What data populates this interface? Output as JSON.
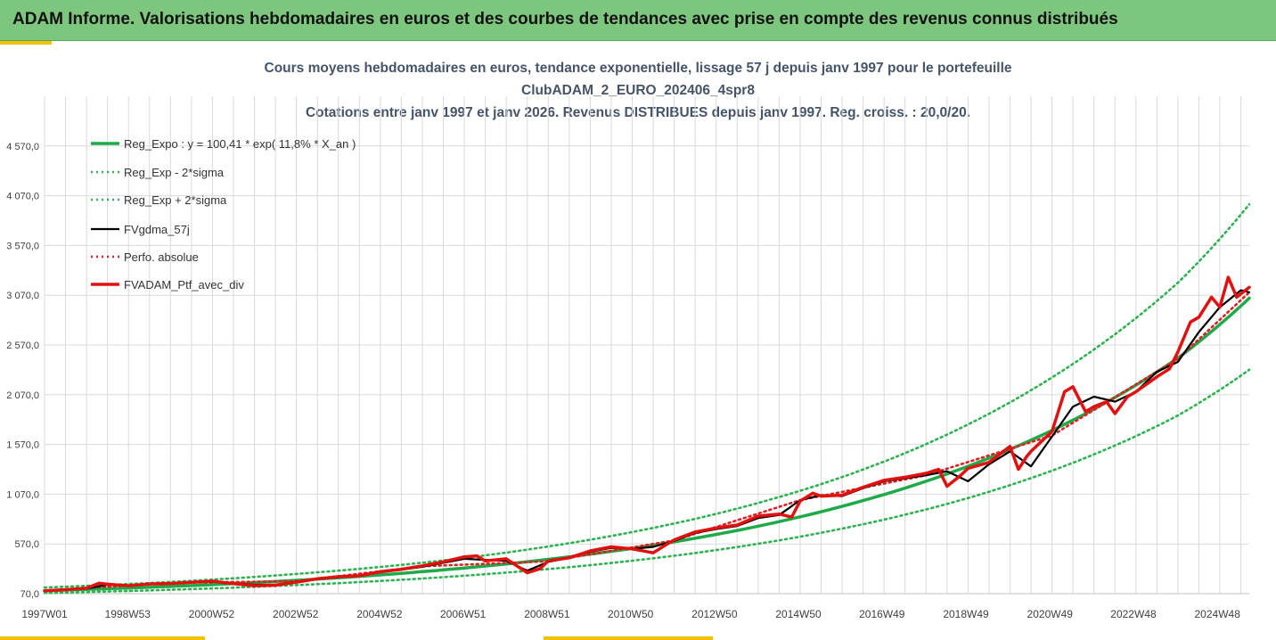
{
  "header": {
    "title": "ADAM Informe. Valorisations hebdomadaires en euros et des courbes de tendances avec prise en compte des revenus connus distribués"
  },
  "colors": {
    "header_bg": "#7dc67e",
    "accent": "#f2c200",
    "reg_expo": "#1faa4a",
    "sigma": "#2bb34e",
    "fv57": "#000000",
    "perfo": "#e02020",
    "ptf": "#e31010"
  },
  "chart_data": {
    "type": "line",
    "title": [
      "Cours moyens hebdomadaires  en euros, tendance exponentielle, lissage 57 j depuis janv 1997 pour le portefeuille",
      "ClubADAM_2_EURO_202406_4spr8",
      "Cotations entre janv 1997 et janv 2026. Revenus DISTRIBUES depuis janv 1997. Reg. croiss. : 20,0/20."
    ],
    "xlabel": "",
    "ylabel": "",
    "x_range": [
      1997.0,
      2025.7
    ],
    "ylim": [
      70,
      5070
    ],
    "y_ticks": [
      70,
      570,
      1070,
      1570,
      2070,
      2570,
      3070,
      3570,
      4070,
      4570
    ],
    "y_tick_labels": [
      "70,0",
      "570,0",
      "1 070,0",
      "1 570,0",
      "2 070,0",
      "2 570,0",
      "3 070,0",
      "3 570,0",
      "4 070,0",
      "4 570,0"
    ],
    "x_ticks": [
      {
        "label": "1997W01",
        "x": 1997.0
      },
      {
        "label": "1998W53",
        "x": 1998.98
      },
      {
        "label": "2000W52",
        "x": 2000.98
      },
      {
        "label": "2002W52",
        "x": 2002.98
      },
      {
        "label": "2004W52",
        "x": 2004.98
      },
      {
        "label": "2006W51",
        "x": 2006.97
      },
      {
        "label": "2008W51",
        "x": 2008.97
      },
      {
        "label": "2010W50",
        "x": 2010.96
      },
      {
        "label": "2012W50",
        "x": 2012.96
      },
      {
        "label": "2014W50",
        "x": 2014.96
      },
      {
        "label": "2016W49",
        "x": 2016.95
      },
      {
        "label": "2018W49",
        "x": 2018.95
      },
      {
        "label": "2020W49",
        "x": 2020.95
      },
      {
        "label": "2022W48",
        "x": 2022.94
      },
      {
        "label": "2024W48",
        "x": 2024.94
      }
    ],
    "regression": {
      "a": 100.41,
      "rate": 0.118,
      "sigma_factor": 1.31
    },
    "series": [
      {
        "name": "Reg_Expo : y = 100,41 * exp( 11,8% *  X_an )",
        "style": "solid-thick",
        "color": "#1faa4a",
        "x": [
          1997.0,
          2000.0,
          2003.0,
          2006.0,
          2009.0,
          2012.0,
          2015.0,
          2018.0,
          2021.0,
          2024.0,
          2025.7
        ],
        "values": [
          100,
          143,
          204,
          291,
          415,
          591,
          842,
          1200,
          1711,
          2438,
          3040
        ]
      },
      {
        "name": "Reg_Exp - 2*sigma",
        "style": "dotted",
        "color": "#2bb34e",
        "x": [
          1997.0,
          2000.0,
          2003.0,
          2006.0,
          2009.0,
          2012.0,
          2015.0,
          2018.0,
          2021.0,
          2024.0,
          2025.7
        ],
        "values": [
          77,
          109,
          156,
          222,
          317,
          451,
          643,
          916,
          1306,
          1861,
          2321
        ]
      },
      {
        "name": "Reg_Exp + 2*sigma",
        "style": "dotted",
        "color": "#2bb34e",
        "x": [
          1997.0,
          2000.0,
          2003.0,
          2006.0,
          2009.0,
          2012.0,
          2015.0,
          2018.0,
          2021.0,
          2024.0,
          2025.7
        ],
        "values": [
          132,
          188,
          268,
          381,
          544,
          775,
          1104,
          1573,
          2243,
          3195,
          3983
        ]
      },
      {
        "name": "FVgdma_57j",
        "style": "solid",
        "color": "#000000",
        "x": [
          1997.0,
          1997.5,
          1998.0,
          1998.5,
          1999.0,
          1999.5,
          2000.0,
          2000.5,
          2001.0,
          2001.5,
          2002.0,
          2002.5,
          2003.0,
          2003.5,
          2004.0,
          2004.5,
          2005.0,
          2005.5,
          2006.0,
          2006.5,
          2007.0,
          2007.5,
          2008.0,
          2008.5,
          2009.0,
          2009.5,
          2010.0,
          2010.5,
          2011.0,
          2011.5,
          2012.0,
          2012.5,
          2013.0,
          2013.5,
          2014.0,
          2014.5,
          2015.0,
          2015.5,
          2016.0,
          2016.5,
          2017.0,
          2017.5,
          2018.0,
          2018.5,
          2019.0,
          2019.5,
          2020.0,
          2020.5,
          2021.0,
          2021.5,
          2022.0,
          2022.5,
          2023.0,
          2023.5,
          2024.0,
          2024.5,
          2025.0,
          2025.5,
          2025.7
        ],
        "values": [
          100,
          108,
          120,
          160,
          150,
          165,
          175,
          182,
          190,
          175,
          160,
          160,
          190,
          215,
          235,
          255,
          285,
          310,
          340,
          380,
          420,
          410,
          400,
          300,
          390,
          430,
          490,
          530,
          520,
          540,
          600,
          680,
          720,
          750,
          830,
          860,
          1010,
          1060,
          1050,
          1130,
          1200,
          1230,
          1260,
          1300,
          1200,
          1370,
          1500,
          1350,
          1650,
          1950,
          2050,
          2000,
          2100,
          2300,
          2400,
          2700,
          2950,
          3120,
          3100
        ]
      },
      {
        "name": "Perfo. absolue",
        "style": "dotted",
        "color": "#e02020",
        "x": [
          1997.0,
          2000.0,
          2003.0,
          2006.0,
          2009.0,
          2012.0,
          2015.0,
          2018.0,
          2021.0,
          2024.0,
          2025.7
        ],
        "values": [
          100,
          178,
          195,
          345,
          395,
          605,
          1010,
          1260,
          1660,
          2430,
          3100
        ]
      },
      {
        "name": "FVADAM_Ptf_avec_div",
        "style": "solid-thick",
        "color": "#e31010",
        "x": [
          1997.0,
          1997.5,
          1998.0,
          1998.3,
          1998.5,
          1999.0,
          1999.5,
          2000.0,
          2000.5,
          2001.0,
          2001.5,
          2002.0,
          2002.5,
          2003.0,
          2003.5,
          2004.0,
          2004.5,
          2005.0,
          2005.5,
          2006.0,
          2006.5,
          2007.0,
          2007.3,
          2007.5,
          2008.0,
          2008.5,
          2008.8,
          2009.0,
          2009.5,
          2010.0,
          2010.5,
          2011.0,
          2011.5,
          2011.8,
          2012.0,
          2012.5,
          2013.0,
          2013.5,
          2014.0,
          2014.5,
          2014.8,
          2015.0,
          2015.3,
          2015.5,
          2016.0,
          2016.5,
          2017.0,
          2017.5,
          2018.0,
          2018.3,
          2018.5,
          2018.8,
          2019.0,
          2019.5,
          2020.0,
          2020.2,
          2020.4,
          2020.5,
          2021.0,
          2021.3,
          2021.5,
          2021.8,
          2022.0,
          2022.3,
          2022.5,
          2022.8,
          2023.0,
          2023.5,
          2023.8,
          2024.0,
          2024.3,
          2024.5,
          2024.8,
          2025.0,
          2025.2,
          2025.4,
          2025.7
        ],
        "values": [
          100,
          110,
          125,
          175,
          165,
          150,
          168,
          172,
          185,
          195,
          170,
          150,
          155,
          185,
          220,
          240,
          250,
          290,
          315,
          350,
          390,
          440,
          450,
          400,
          420,
          280,
          320,
          400,
          430,
          500,
          540,
          520,
          480,
          560,
          610,
          690,
          730,
          760,
          850,
          870,
          840,
          1000,
          1080,
          1050,
          1060,
          1140,
          1210,
          1240,
          1280,
          1320,
          1150,
          1250,
          1330,
          1390,
          1550,
          1320,
          1450,
          1500,
          1700,
          2100,
          2150,
          1900,
          1950,
          2000,
          1880,
          2050,
          2100,
          2250,
          2330,
          2500,
          2800,
          2850,
          3050,
          2950,
          3250,
          3050,
          3150
        ]
      }
    ],
    "legend_position": "top-left",
    "grid": true
  }
}
